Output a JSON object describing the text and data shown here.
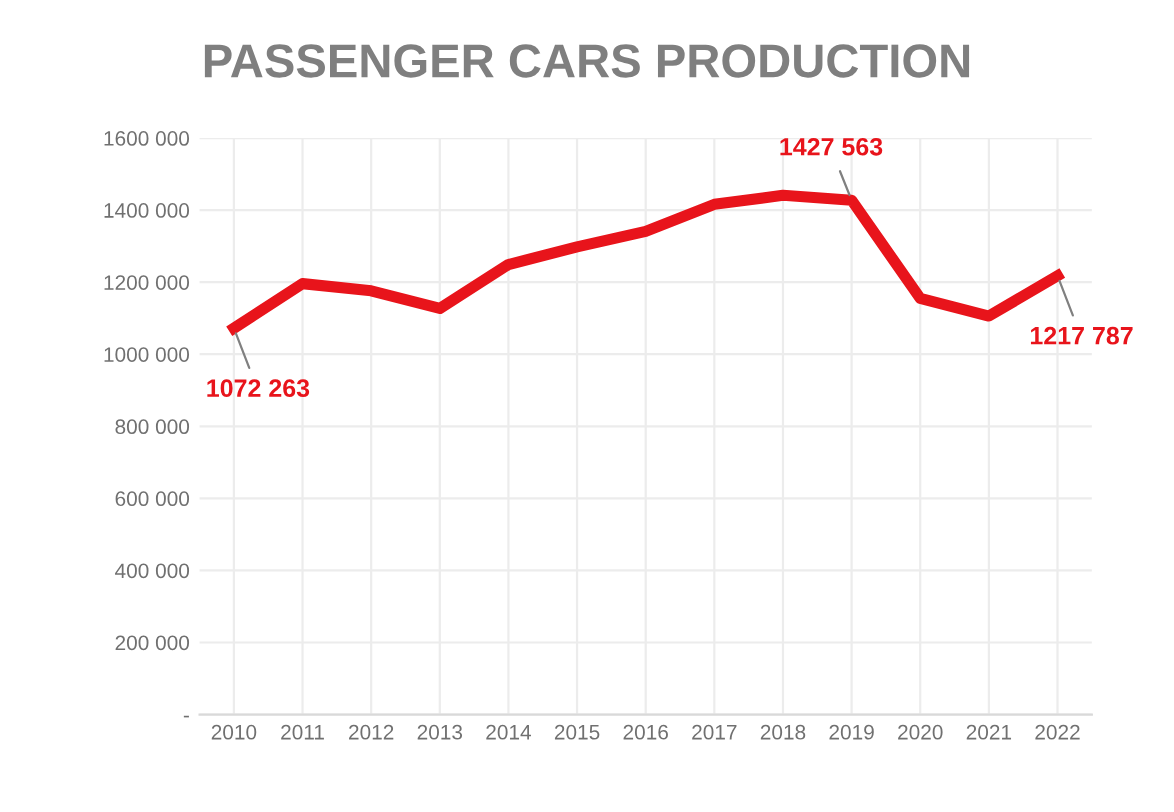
{
  "chart_data": {
    "type": "line",
    "title": "PASSENGER CARS PRODUCTION",
    "categories": [
      "2010",
      "2011",
      "2012",
      "2013",
      "2014",
      "2015",
      "2016",
      "2017",
      "2018",
      "2019",
      "2020",
      "2021",
      "2022"
    ],
    "series": [
      {
        "color": "#e8141b",
        "values": [
          1072263,
          1196000,
          1176000,
          1127000,
          1249000,
          1298000,
          1341000,
          1416000,
          1441000,
          1427563,
          1155000,
          1106000,
          1217787
        ]
      }
    ],
    "ylim": [
      0,
      1600000
    ],
    "yticks": [
      {
        "value": 0,
        "label": "-"
      },
      {
        "value": 200000,
        "label": "200 000"
      },
      {
        "value": 400000,
        "label": "400 000"
      },
      {
        "value": 600000,
        "label": "600 000"
      },
      {
        "value": 800000,
        "label": "800 000"
      },
      {
        "value": 1000000,
        "label": "1000 000"
      },
      {
        "value": 1200000,
        "label": "1200 000"
      },
      {
        "value": 1400000,
        "label": "1400 000"
      },
      {
        "value": 1600000,
        "label": "1600 000"
      }
    ],
    "grid": true,
    "marker": "none",
    "line_style": "solid",
    "annotations": [
      {
        "text": "1072 263",
        "x": "2010",
        "y": 1072263
      },
      {
        "text": "1427 563",
        "x": "2019",
        "y": 1427563
      },
      {
        "text": "1217 787",
        "x": "2022",
        "y": 1217787
      }
    ]
  }
}
